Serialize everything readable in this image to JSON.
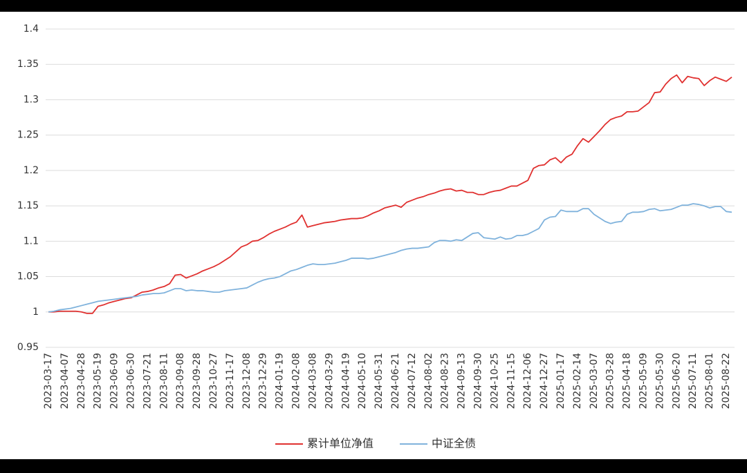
{
  "chart_data": {
    "type": "line",
    "categories": [
      "2023-03-17",
      null,
      null,
      "2023-04-07",
      null,
      null,
      "2023-04-28",
      null,
      null,
      "2023-05-19",
      null,
      null,
      "2023-06-09",
      null,
      null,
      "2023-06-30",
      null,
      null,
      "2023-07-21",
      null,
      null,
      "2023-08-11",
      null,
      null,
      "2023-09-08",
      null,
      null,
      "2023-09-28",
      null,
      null,
      "2023-10-27",
      null,
      null,
      "2023-11-17",
      null,
      null,
      "2023-12-08",
      null,
      null,
      "2023-12-29",
      null,
      null,
      "2024-01-19",
      null,
      null,
      "2024-02-08",
      null,
      null,
      "2024-03-08",
      null,
      null,
      "2024-03-29",
      null,
      null,
      "2024-04-19",
      null,
      null,
      "2024-05-10",
      null,
      null,
      "2024-05-31",
      null,
      null,
      "2024-06-21",
      null,
      null,
      "2024-07-12",
      null,
      null,
      "2024-08-02",
      null,
      null,
      "2024-08-23",
      null,
      null,
      "2024-09-13",
      null,
      null,
      "2024-09-30",
      null,
      null,
      "2024-10-25",
      null,
      null,
      "2024-11-15",
      null,
      null,
      "2024-12-06",
      null,
      null,
      "2024-12-27",
      null,
      null,
      "2025-01-17",
      null,
      null,
      "2025-02-14",
      null,
      null,
      "2025-03-07",
      null,
      null,
      "2025-03-28",
      null,
      null,
      "2025-04-18",
      null,
      null,
      "2025-05-09",
      null,
      null,
      "2025-05-30",
      null,
      null,
      "2025-06-20",
      null,
      null,
      "2025-07-11",
      null,
      null,
      "2025-08-01",
      null,
      null,
      "2025-08-22",
      null
    ],
    "series": [
      {
        "name": "累计单位净值",
        "color": "#e0302f",
        "values": [
          1.0,
          1.0,
          1.001,
          1.001,
          1.001,
          1.001,
          1.0,
          0.998,
          0.998,
          1.008,
          1.01,
          1.013,
          1.015,
          1.017,
          1.019,
          1.02,
          1.024,
          1.028,
          1.029,
          1.031,
          1.034,
          1.036,
          1.04,
          1.052,
          1.053,
          1.048,
          1.051,
          1.054,
          1.058,
          1.061,
          1.064,
          1.068,
          1.073,
          1.078,
          1.085,
          1.092,
          1.095,
          1.1,
          1.101,
          1.105,
          1.11,
          1.114,
          1.117,
          1.12,
          1.124,
          1.127,
          1.137,
          1.12,
          1.122,
          1.124,
          1.126,
          1.127,
          1.128,
          1.13,
          1.131,
          1.132,
          1.132,
          1.133,
          1.136,
          1.14,
          1.143,
          1.147,
          1.149,
          1.151,
          1.148,
          1.155,
          1.158,
          1.161,
          1.163,
          1.166,
          1.168,
          1.171,
          1.173,
          1.174,
          1.171,
          1.172,
          1.169,
          1.169,
          1.166,
          1.166,
          1.169,
          1.171,
          1.172,
          1.175,
          1.178,
          1.178,
          1.182,
          1.186,
          1.203,
          1.207,
          1.208,
          1.215,
          1.218,
          1.211,
          1.219,
          1.223,
          1.235,
          1.245,
          1.24,
          1.248,
          1.256,
          1.265,
          1.272,
          1.275,
          1.277,
          1.283,
          1.283,
          1.284,
          1.29,
          1.296,
          1.31,
          1.311,
          1.322,
          1.33,
          1.335,
          1.324,
          1.333,
          1.331,
          1.33,
          1.32,
          1.327,
          1.332,
          1.329,
          1.326,
          1.332
        ]
      },
      {
        "name": "中证全债",
        "color": "#7fb2dc",
        "values": [
          1.0,
          1.001,
          1.003,
          1.004,
          1.005,
          1.007,
          1.009,
          1.011,
          1.013,
          1.015,
          1.016,
          1.017,
          1.018,
          1.019,
          1.02,
          1.021,
          1.022,
          1.024,
          1.025,
          1.026,
          1.026,
          1.027,
          1.03,
          1.033,
          1.033,
          1.03,
          1.031,
          1.03,
          1.03,
          1.029,
          1.028,
          1.028,
          1.03,
          1.031,
          1.032,
          1.033,
          1.034,
          1.038,
          1.042,
          1.045,
          1.047,
          1.048,
          1.05,
          1.054,
          1.058,
          1.06,
          1.063,
          1.066,
          1.068,
          1.067,
          1.067,
          1.068,
          1.069,
          1.071,
          1.073,
          1.076,
          1.076,
          1.076,
          1.075,
          1.076,
          1.078,
          1.08,
          1.082,
          1.084,
          1.087,
          1.089,
          1.09,
          1.09,
          1.091,
          1.092,
          1.098,
          1.101,
          1.101,
          1.1,
          1.102,
          1.101,
          1.106,
          1.111,
          1.112,
          1.105,
          1.104,
          1.103,
          1.106,
          1.103,
          1.104,
          1.108,
          1.108,
          1.11,
          1.114,
          1.118,
          1.13,
          1.134,
          1.135,
          1.144,
          1.142,
          1.142,
          1.142,
          1.146,
          1.146,
          1.138,
          1.133,
          1.128,
          1.125,
          1.127,
          1.128,
          1.138,
          1.141,
          1.141,
          1.142,
          1.145,
          1.146,
          1.143,
          1.144,
          1.145,
          1.148,
          1.151,
          1.151,
          1.153,
          1.152,
          1.15,
          1.147,
          1.149,
          1.149,
          1.142,
          1.141
        ]
      }
    ],
    "ylim": [
      0.95,
      1.4
    ],
    "yticks": [
      0.95,
      1,
      1.05,
      1.1,
      1.15,
      1.2,
      1.25,
      1.3,
      1.35,
      1.4
    ],
    "grid": true,
    "legend": "bottom"
  }
}
